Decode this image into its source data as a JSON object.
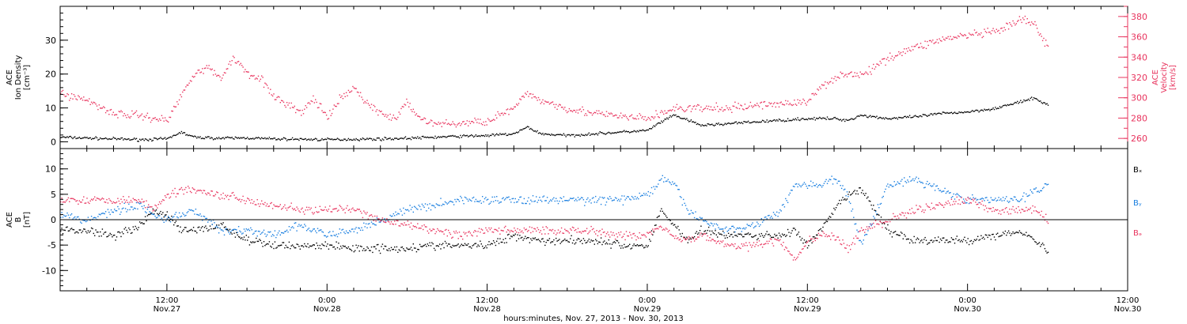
{
  "x_axis": {
    "label": "hours:minutes, Nov. 27, 2013 - Nov. 30, 2013",
    "range_hours": [
      4,
      84
    ],
    "ticks": [
      {
        "hour": 12,
        "time": "12:00",
        "date": "Nov.27"
      },
      {
        "hour": 24,
        "time": "0:00",
        "date": "Nov.28"
      },
      {
        "hour": 36,
        "time": "12:00",
        "date": "Nov.28"
      },
      {
        "hour": 48,
        "time": "0:00",
        "date": "Nov.29"
      },
      {
        "hour": 60,
        "time": "12:00",
        "date": "Nov.29"
      },
      {
        "hour": 72,
        "time": "0:00",
        "date": "Nov.30"
      },
      {
        "hour": 84,
        "time": "12:00",
        "date": "Nov.30"
      }
    ]
  },
  "colors": {
    "black": "#000000",
    "red": "#e8345e",
    "blue": "#1a7fe0"
  },
  "chart_data": [
    {
      "type": "scatter",
      "panel": "top",
      "left_axis": {
        "label_lines": [
          "ACE",
          "Ion Density",
          "[cm⁻³]"
        ],
        "range": [
          -2,
          40
        ],
        "ticks": [
          0,
          10,
          20,
          30
        ]
      },
      "right_axis": {
        "label_lines": [
          "ACE",
          "Velocity",
          "[km/s]"
        ],
        "range": [
          250,
          390
        ],
        "ticks": [
          260,
          280,
          300,
          320,
          340,
          360,
          380
        ]
      },
      "series": [
        {
          "axis": "left",
          "color": "#000000",
          "x": [
            4,
            8,
            10,
            12,
            13,
            14,
            16,
            18,
            20,
            24,
            28,
            30,
            32,
            34,
            36,
            38,
            39,
            40,
            42,
            44,
            46,
            48,
            49,
            50,
            52,
            54,
            56,
            58,
            60,
            62,
            63,
            64,
            66,
            68,
            70,
            72,
            74,
            76,
            77,
            78
          ],
          "y": [
            1.5,
            1.0,
            0.8,
            1.0,
            3.0,
            1.5,
            1.2,
            1.3,
            1.0,
            0.8,
            1.0,
            1.2,
            1.5,
            1.8,
            2.0,
            2.5,
            4.5,
            2.5,
            2.0,
            2.5,
            3.0,
            3.5,
            6.0,
            8.0,
            5.0,
            5.5,
            6.0,
            6.5,
            7.0,
            7.0,
            6.5,
            8.0,
            7.0,
            7.5,
            8.5,
            9.0,
            10.0,
            12.0,
            13.0,
            11.0
          ]
        },
        {
          "axis": "right",
          "color": "#e8345e",
          "x": [
            4,
            6,
            8,
            10,
            12,
            14,
            15,
            16,
            17,
            18,
            19,
            20,
            21,
            22,
            23,
            24,
            25,
            26,
            27,
            28,
            29,
            30,
            31,
            32,
            34,
            36,
            38,
            39,
            40,
            42,
            44,
            46,
            48,
            50,
            52,
            54,
            56,
            58,
            60,
            61,
            62,
            63,
            64,
            65,
            66,
            67,
            68,
            70,
            72,
            74,
            75,
            76,
            77,
            78
          ],
          "y": [
            305,
            298,
            285,
            283,
            278,
            325,
            330,
            320,
            340,
            325,
            320,
            300,
            295,
            285,
            300,
            280,
            300,
            310,
            295,
            285,
            280,
            295,
            280,
            275,
            275,
            278,
            290,
            305,
            298,
            290,
            285,
            282,
            280,
            290,
            290,
            290,
            293,
            295,
            296,
            312,
            320,
            325,
            322,
            330,
            340,
            345,
            350,
            358,
            362,
            365,
            370,
            378,
            372,
            350
          ]
        }
      ]
    },
    {
      "type": "scatter",
      "panel": "bottom",
      "left_axis": {
        "label_lines": [
          "ACE",
          "B",
          "[nT]"
        ],
        "range": [
          -14,
          14
        ],
        "ticks": [
          -10,
          -5,
          0,
          5,
          10
        ]
      },
      "legend": [
        {
          "label": "Bₓ",
          "color": "#000000"
        },
        {
          "label": "Bᵧ",
          "color": "#1a7fe0"
        },
        {
          "label": "Bₔ",
          "color": "#e8345e"
        }
      ],
      "series": [
        {
          "name": "Bₓ",
          "color": "#000000",
          "x": [
            4,
            6,
            8,
            10,
            11,
            12,
            13,
            14,
            16,
            18,
            20,
            22,
            24,
            26,
            28,
            30,
            32,
            34,
            36,
            38,
            40,
            42,
            44,
            46,
            48,
            49,
            50,
            51,
            52,
            54,
            56,
            58,
            59,
            60,
            61,
            62,
            63,
            64,
            66,
            68,
            70,
            72,
            74,
            76,
            77,
            78
          ],
          "y": [
            -2,
            -2,
            -3,
            -1,
            2,
            1,
            -2,
            -2,
            -1,
            -4,
            -5,
            -5,
            -5,
            -5.5,
            -5.5,
            -5.5,
            -5,
            -5,
            -5,
            -3,
            -4,
            -4,
            -4,
            -5,
            -5,
            2,
            -1,
            -4,
            -2,
            -3,
            -3,
            -3,
            -2,
            -5,
            -2,
            2,
            5,
            6,
            -2,
            -4,
            -4,
            -4,
            -3,
            -2,
            -4,
            -6
          ]
        },
        {
          "name": "Bᵧ",
          "color": "#1a7fe0",
          "x": [
            4,
            6,
            8,
            10,
            11,
            12,
            13,
            14,
            16,
            18,
            20,
            22,
            24,
            26,
            28,
            30,
            32,
            34,
            36,
            38,
            40,
            42,
            44,
            46,
            48,
            49,
            50,
            51,
            52,
            54,
            56,
            58,
            59,
            60,
            61,
            62,
            63,
            64,
            66,
            68,
            70,
            72,
            74,
            76,
            77,
            78
          ],
          "y": [
            1,
            0,
            2,
            3,
            1,
            0,
            1,
            2,
            -2,
            -2,
            -3,
            -1,
            -3,
            -2,
            0,
            2,
            3,
            4,
            4,
            4,
            4,
            4,
            4,
            4,
            5,
            8,
            7,
            2,
            0,
            -2,
            -1,
            2,
            7,
            7,
            7,
            8,
            5,
            -5,
            7,
            8,
            6,
            4,
            4,
            4,
            6,
            7
          ]
        },
        {
          "name": "Bₔ",
          "color": "#e8345e",
          "x": [
            4,
            6,
            8,
            10,
            11,
            12,
            13,
            14,
            16,
            18,
            20,
            22,
            24,
            26,
            28,
            30,
            32,
            34,
            36,
            38,
            40,
            42,
            44,
            46,
            48,
            49,
            50,
            51,
            52,
            54,
            56,
            58,
            59,
            60,
            61,
            62,
            63,
            64,
            66,
            68,
            70,
            72,
            74,
            76,
            77,
            78
          ],
          "y": [
            4,
            4,
            4,
            4,
            2,
            5,
            6,
            6,
            5,
            4,
            3,
            2,
            2,
            2,
            0,
            -1,
            -2,
            -3,
            -2,
            -2,
            -2,
            -2,
            -2,
            -3,
            -3,
            -1,
            -3,
            -4,
            -3,
            -5,
            -5,
            -4,
            -8,
            -4,
            -3,
            -3,
            -6,
            -2,
            0,
            2,
            3,
            4,
            2,
            2,
            2,
            0
          ]
        }
      ]
    }
  ]
}
